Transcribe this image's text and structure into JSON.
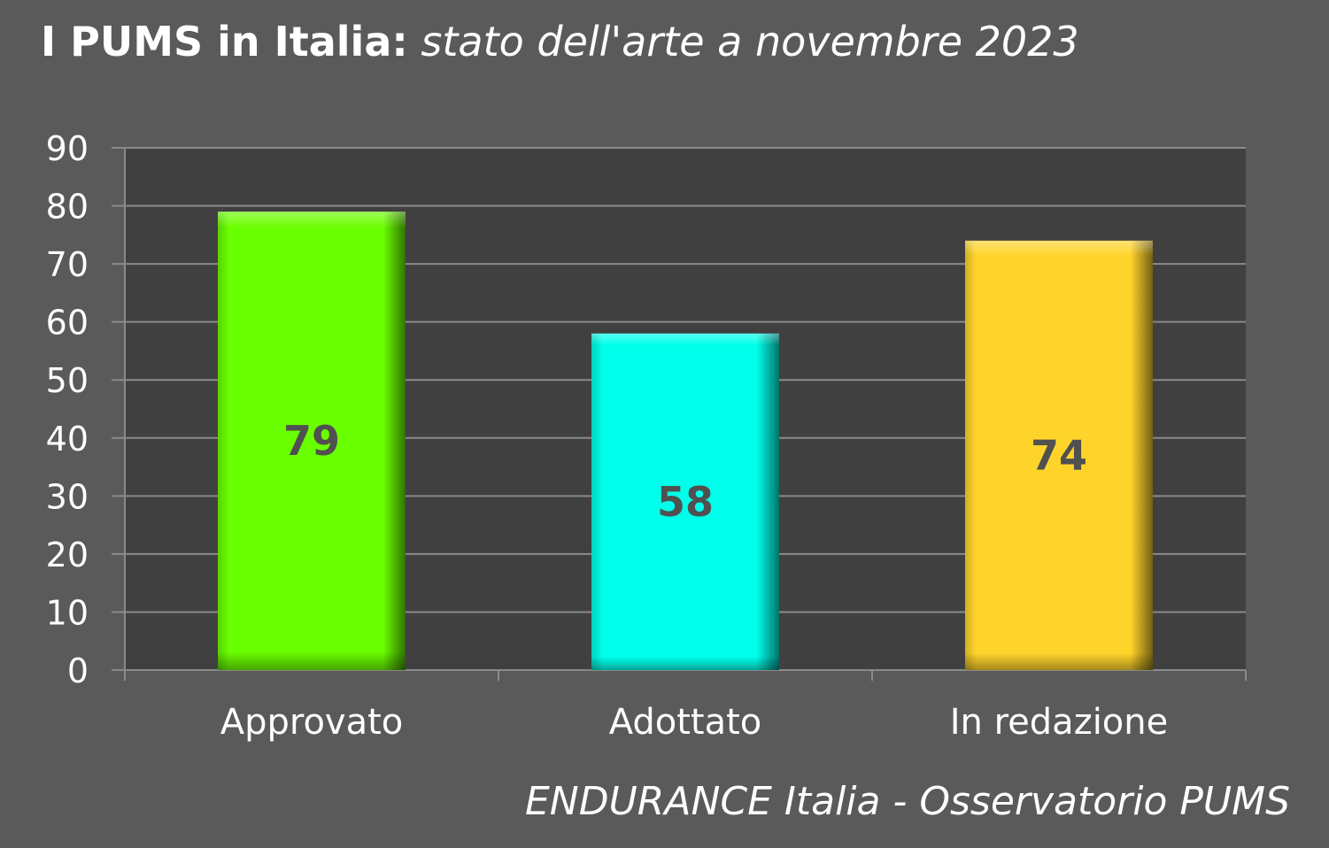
{
  "title": {
    "bold_part": "I PUMS in Italia:",
    "italic_part": "stato dell'arte a novembre 2023"
  },
  "source": "ENDURANCE Italia - Osservatorio PUMS",
  "colors": {
    "background": "#5a5a5a",
    "plot_area": "#404040",
    "gridline": "#8a8a8a",
    "axis_text": "#ffffff",
    "data_label": "#505050"
  },
  "chart_data": {
    "type": "bar",
    "categories": [
      "Approvato",
      "Adottato",
      "In redazione"
    ],
    "values": [
      79,
      58,
      74
    ],
    "bar_colors": [
      "#6aff00",
      "#00ffea",
      "#ffd42a"
    ],
    "ylim": [
      0,
      90
    ],
    "yticks": [
      0,
      10,
      20,
      30,
      40,
      50,
      60,
      70,
      80,
      90
    ],
    "grid": true,
    "data_labels": true
  }
}
